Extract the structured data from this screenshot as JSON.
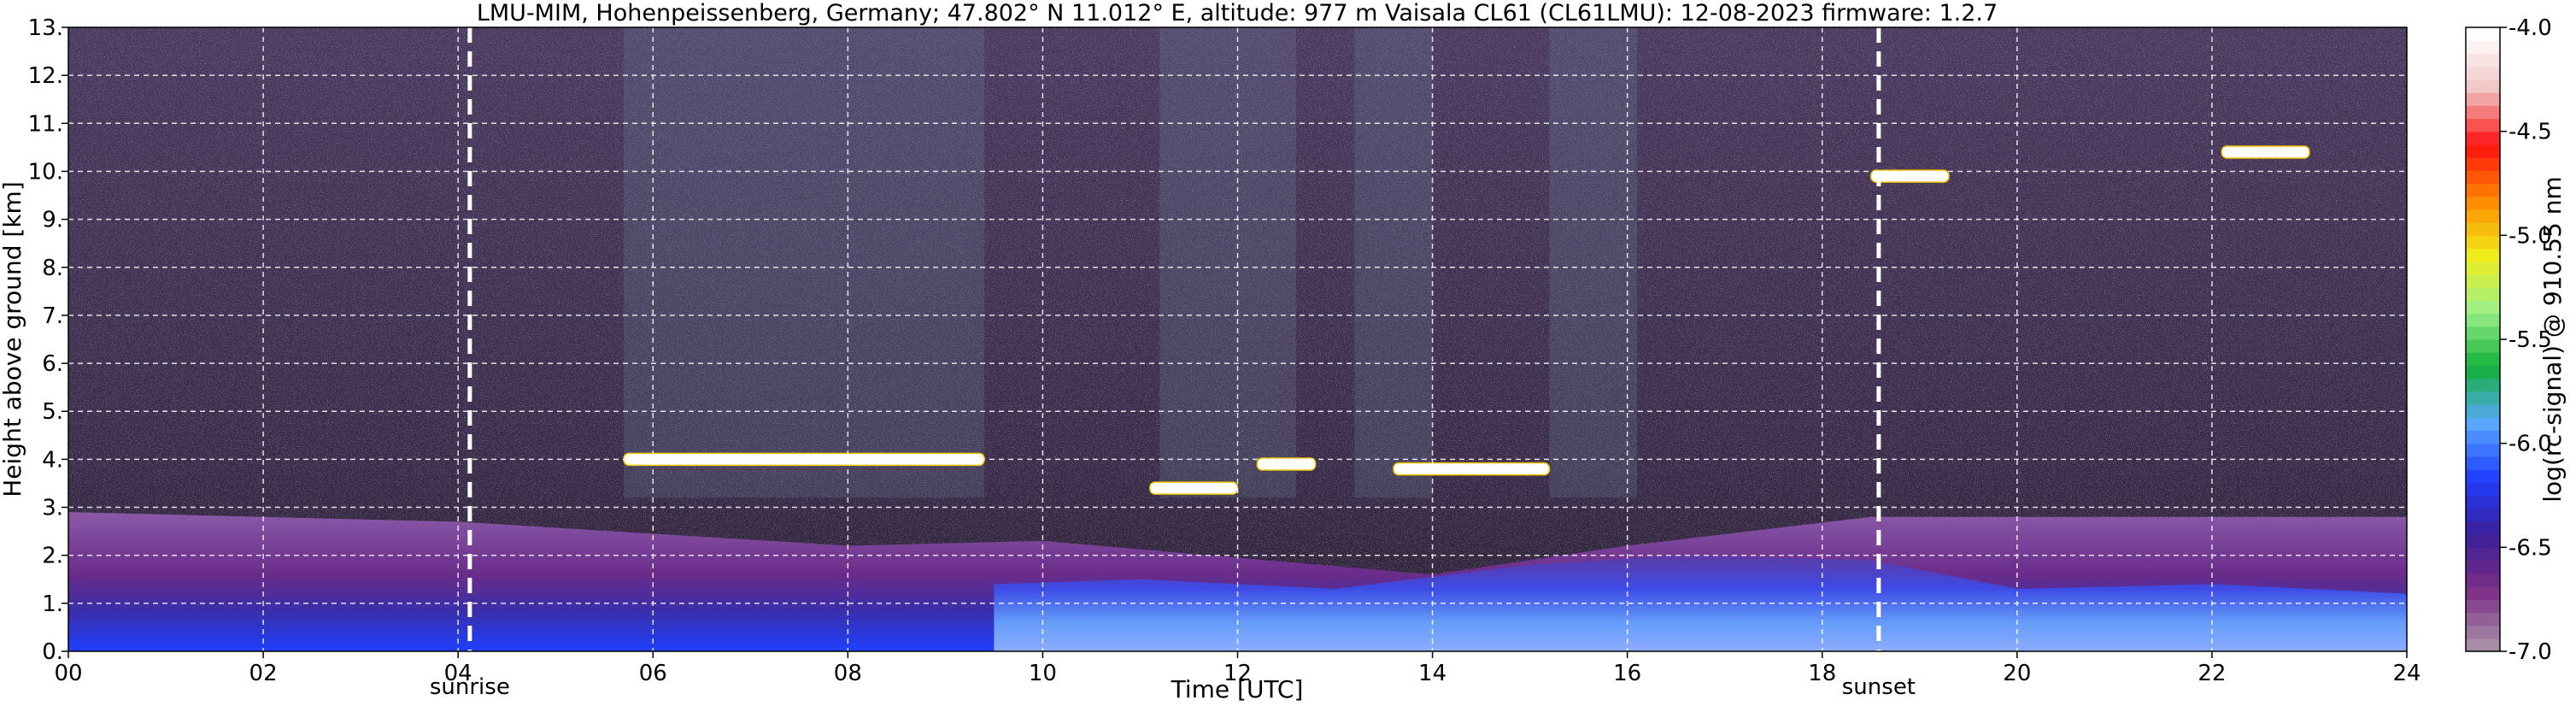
{
  "chart_data": {
    "type": "heatmap",
    "title": "LMU-MIM, Hohenpeissenberg, Germany; 47.802° N 11.012° E, altitude: 977 m    Vaisala CL61 (CL61LMU): 12-08-2023    firmware: 1.2.7",
    "xlabel": "Time [UTC]",
    "ylabel": "Height above ground [km]",
    "xlim": [
      0,
      24
    ],
    "ylim": [
      0,
      13
    ],
    "x_tick_labels": [
      "00",
      "02",
      "04",
      "06",
      "08",
      "10",
      "12",
      "14",
      "16",
      "18",
      "20",
      "22",
      "24"
    ],
    "y_tick_labels": [
      "0.",
      "1.",
      "2.",
      "3.",
      "4.",
      "5.",
      "6.",
      "7.",
      "8.",
      "9.",
      "10.",
      "11.",
      "12.",
      "13."
    ],
    "grid": true,
    "colorbar": {
      "label": "log(rc-signal) @ 910.55 nm",
      "range": [
        -7.0,
        -4.0
      ],
      "tick_labels": [
        "-4.0",
        "-4.5",
        "-5.0",
        "-5.5",
        "-6.0",
        "-6.5",
        "-7.0"
      ]
    },
    "markers": [
      {
        "label": "sunrise",
        "time_utc_hours": 4.12
      },
      {
        "label": "sunset",
        "time_utc_hours": 18.58
      }
    ],
    "cloud_layers": [
      {
        "t_start": 5.7,
        "t_end": 9.4,
        "height_km": 4.0
      },
      {
        "t_start": 11.1,
        "t_end": 12.0,
        "height_km": 3.4
      },
      {
        "t_start": 12.2,
        "t_end": 12.8,
        "height_km": 3.9
      },
      {
        "t_start": 13.6,
        "t_end": 15.2,
        "height_km": 3.8
      },
      {
        "t_start": 18.5,
        "t_end": 19.3,
        "height_km": 9.9
      },
      {
        "t_start": 22.1,
        "t_end": 23.0,
        "height_km": 10.4
      }
    ],
    "boundary_layer_top_km": [
      {
        "t": 0,
        "h": 2.9
      },
      {
        "t": 4,
        "h": 2.7
      },
      {
        "t": 8,
        "h": 2.2
      },
      {
        "t": 10,
        "h": 2.3
      },
      {
        "t": 14,
        "h": 1.6
      },
      {
        "t": 16,
        "h": 2.2
      },
      {
        "t": 18.5,
        "h": 2.8
      },
      {
        "t": 24,
        "h": 2.8
      }
    ],
    "colors": [
      "#a68ca6",
      "#7c2d86",
      "#3b1f9a",
      "#1f3fff",
      "#5aa8ff",
      "#12b03a",
      "#9af08a",
      "#f0ee1a",
      "#ff8a00",
      "#ff1010",
      "#f0c4c4",
      "#ffffff"
    ]
  }
}
